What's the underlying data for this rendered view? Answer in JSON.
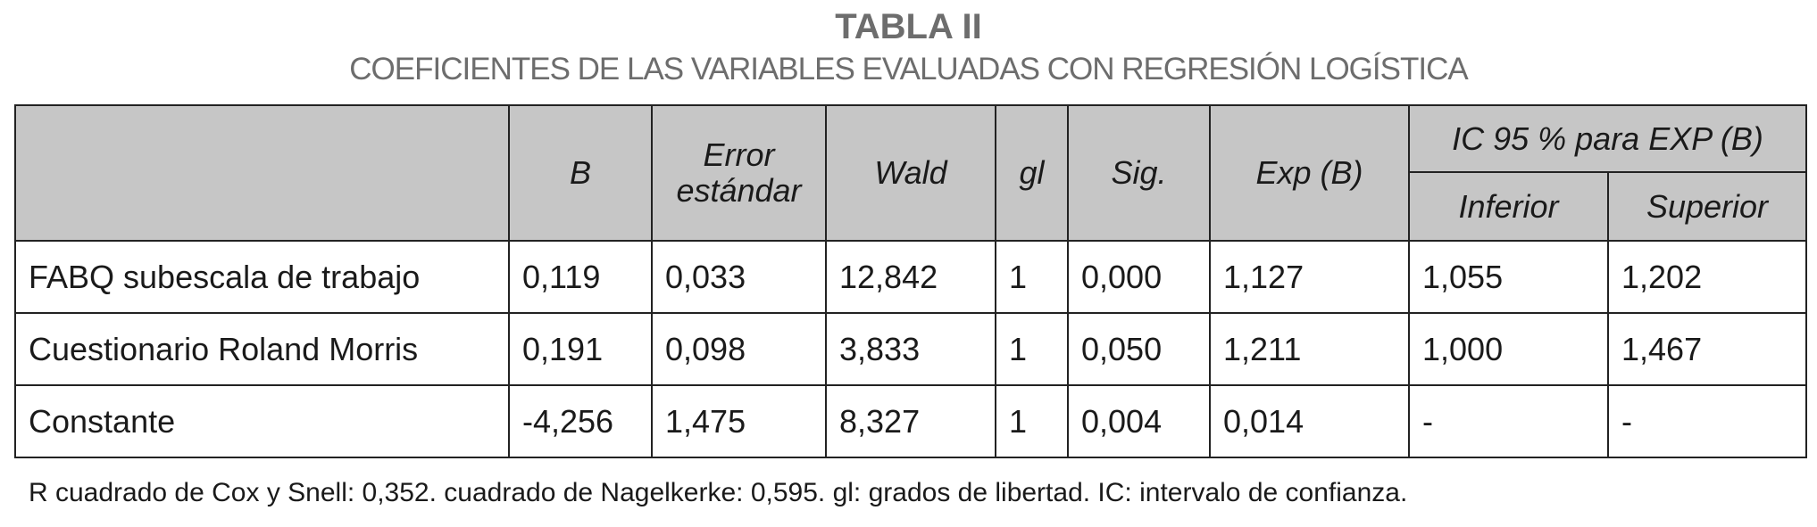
{
  "title": "TABLA II",
  "subtitle": "COEFICIENTES DE LAS VARIABLES EVALUADAS CON REGRESIÓN LOGÍSTICA",
  "header": {
    "variable": "",
    "b": "B",
    "error_line1": "Error",
    "error_line2": "estándar",
    "wald": "Wald",
    "gl": "gl",
    "sig": "Sig.",
    "exp": "Exp (B)",
    "ic_group": "IC 95 % para EXP (B)",
    "inferior": "Inferior",
    "superior": "Superior"
  },
  "rows": [
    {
      "variable": "FABQ subescala de trabajo",
      "b": "0,119",
      "error": "0,033",
      "wald": "12,842",
      "gl": "1",
      "sig": "0,000",
      "exp": "1,127",
      "inferior": "1,055",
      "superior": "1,202"
    },
    {
      "variable": "Cuestionario Roland Morris",
      "b": "0,191",
      "error": "0,098",
      "wald": "3,833",
      "gl": "1",
      "sig": "0,050",
      "exp": "1,211",
      "inferior": "1,000",
      "superior": "1,467"
    },
    {
      "variable": "Constante",
      "b": "-4,256",
      "error": "1,475",
      "wald": "8,327",
      "gl": "1",
      "sig": "0,004",
      "exp": "0,014",
      "inferior": "-",
      "superior": "-"
    }
  ],
  "footnote": "R cuadrado de Cox y Snell: 0,352. cuadrado de Nagelkerke: 0,595. gl: grados de libertad. IC: intervalo de confianza."
}
